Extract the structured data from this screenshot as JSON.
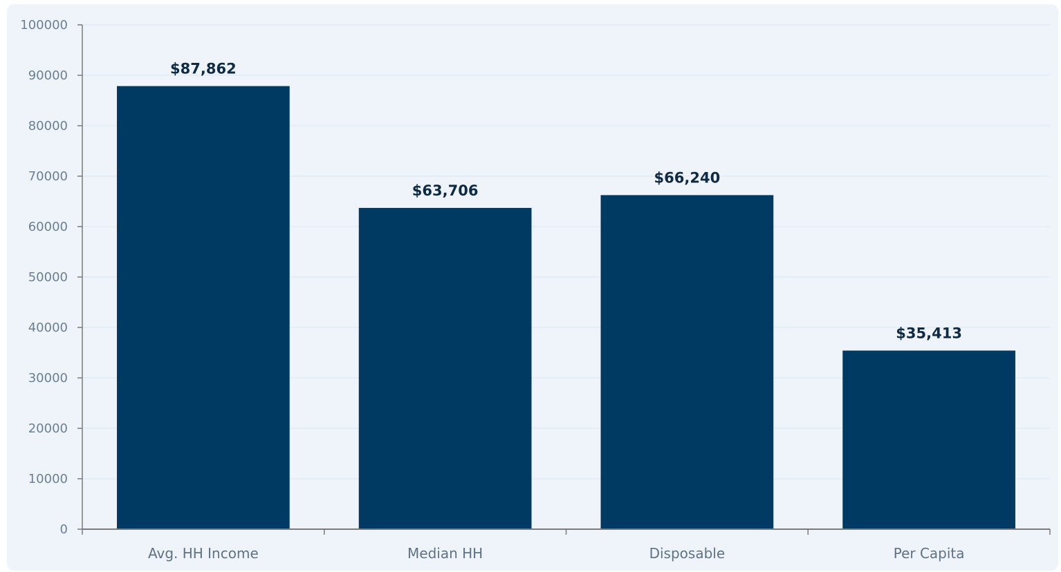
{
  "chart_data": {
    "type": "bar",
    "title": "",
    "xlabel": "",
    "ylabel": "",
    "categories": [
      "Avg. HH Income",
      "Median HH",
      "Disposable",
      "Per Capita"
    ],
    "values": [
      87862,
      63706,
      66240,
      35413
    ],
    "data_labels": [
      "$87,862",
      "$63,706",
      "$66,240",
      "$35,413"
    ],
    "ylim": [
      0,
      100000
    ],
    "y_ticks": [
      0,
      10000,
      20000,
      30000,
      40000,
      50000,
      60000,
      70000,
      80000,
      90000,
      100000
    ],
    "y_tick_labels": [
      "0",
      "10000",
      "20000",
      "30000",
      "40000",
      "50000",
      "60000",
      "70000",
      "80000",
      "90000",
      "100000"
    ],
    "grid": true,
    "legend": "none",
    "colors": {
      "bar": "#003a63",
      "panel_background": "#eff4fa",
      "grid": "#dde7f0",
      "axis": "#7a7a7a",
      "data_label": "#0f2b44",
      "tick_label": "#6b7f92"
    }
  }
}
